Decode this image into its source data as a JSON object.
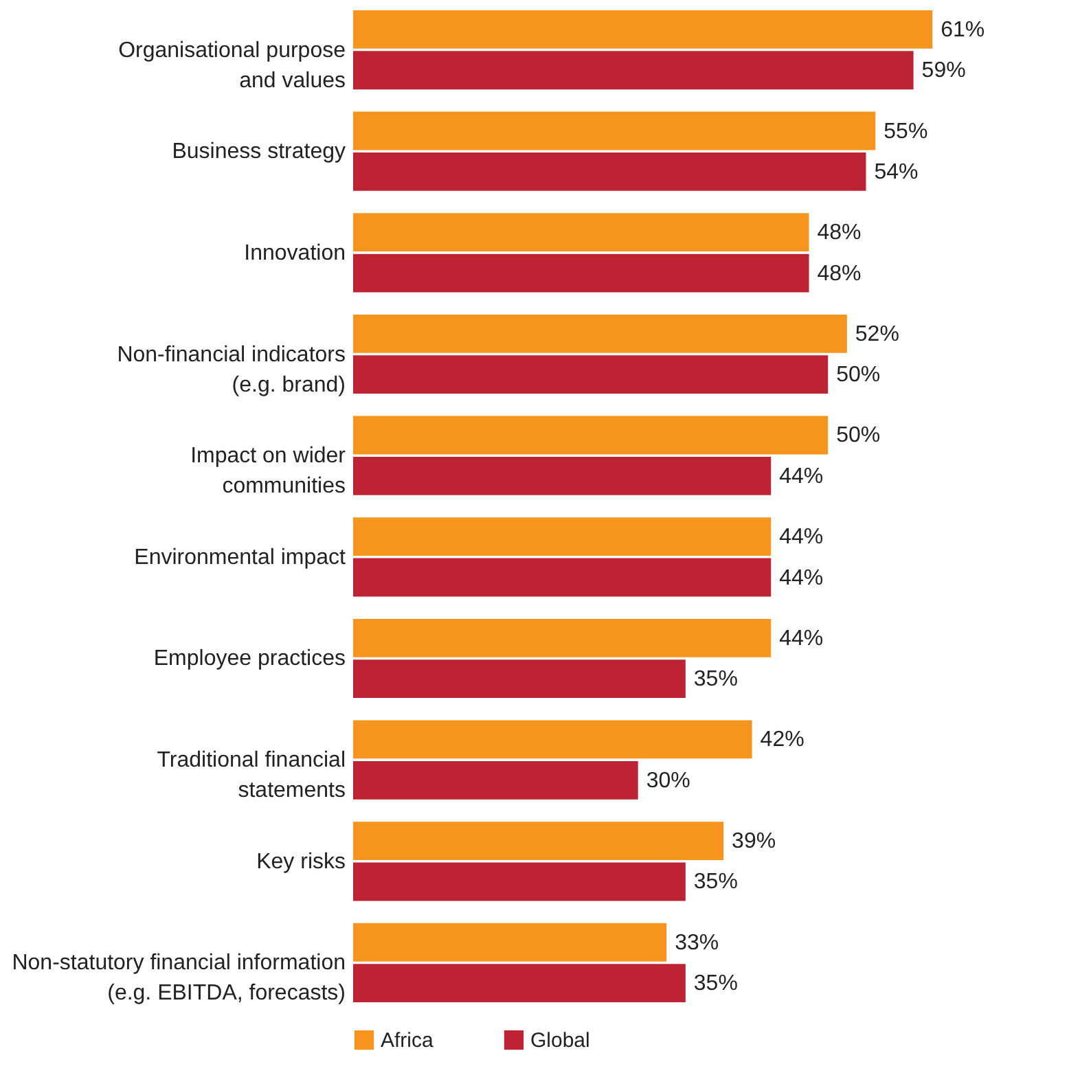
{
  "chart_data": {
    "type": "bar",
    "orientation": "horizontal",
    "categories": [
      "Organisational purpose\nand values",
      "Business strategy",
      "Innovation",
      "Non-financial indicators\n(e.g. brand)",
      "Impact on wider\ncommunities",
      "Environmental impact",
      "Employee practices",
      "Traditional financial\nstatements",
      "Key risks",
      "Non-statutory financial information\n(e.g. EBITDA, forecasts)"
    ],
    "series": [
      {
        "name": "Africa",
        "color": "#f7941d",
        "values": [
          61,
          55,
          48,
          52,
          50,
          44,
          44,
          42,
          39,
          33
        ],
        "value_labels": [
          "61%",
          "55%",
          "48%",
          "52%",
          "50%",
          "44%",
          "44%",
          "42%",
          "39%",
          "33%"
        ]
      },
      {
        "name": "Global",
        "color": "#bd2332",
        "values": [
          59,
          54,
          48,
          50,
          44,
          44,
          35,
          30,
          35,
          35
        ],
        "value_labels": [
          "59%",
          "54%",
          "48%",
          "50%",
          "44%",
          "44%",
          "35%",
          "30%",
          "35%",
          "35%"
        ]
      }
    ],
    "xlim": [
      0,
      68
    ],
    "tick_labels": "y",
    "legend": "bottom"
  }
}
